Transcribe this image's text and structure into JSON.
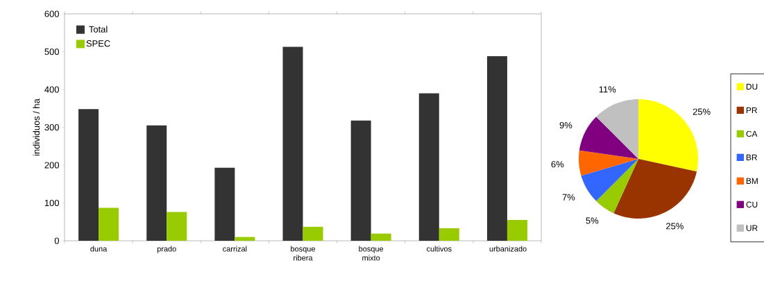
{
  "chart_data": [
    {
      "type": "bar",
      "ylabel": "individuos / ha",
      "categories": [
        "duna",
        "prado",
        "carrizal",
        "bosque ribera",
        "bosque mixto",
        "cultivos",
        "urbanizado"
      ],
      "series": [
        {
          "name": "Total",
          "color": "#333333",
          "values": [
            348,
            305,
            193,
            513,
            318,
            390,
            488
          ]
        },
        {
          "name": "SPEC",
          "color": "#99cc00",
          "values": [
            87,
            76,
            10,
            37,
            19,
            33,
            55
          ]
        }
      ],
      "ylim": [
        0,
        600
      ],
      "yticks": [
        0,
        100,
        200,
        300,
        400,
        500,
        600
      ],
      "legend": "top left"
    },
    {
      "type": "pie",
      "categories": [
        "DU",
        "PR",
        "CA",
        "BR",
        "BM",
        "CU",
        "UR"
      ],
      "values": [
        25,
        25,
        5,
        7,
        6,
        9,
        11
      ],
      "colors": [
        "#ffff00",
        "#993300",
        "#99cc00",
        "#3366ff",
        "#ff6600",
        "#800080",
        "#c0c0c0"
      ],
      "value_labels": [
        "25%",
        "25%",
        "5%",
        "7%",
        "6%",
        "9%",
        "11%"
      ],
      "legend": "right"
    }
  ]
}
